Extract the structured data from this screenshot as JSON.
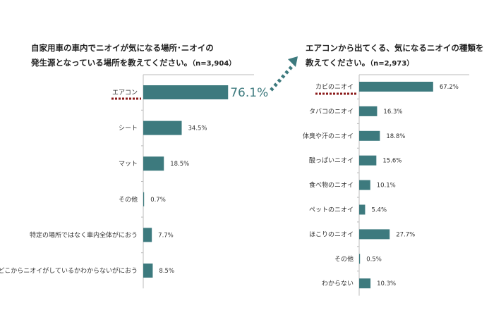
{
  "colors": {
    "bar": "#3d7a7e",
    "highlight_label": "#3d7a7e",
    "marker": "#8b1a1a"
  },
  "chart_data": [
    {
      "type": "bar",
      "orientation": "horizontal",
      "title": "自家用車の車内でニオイが気になる場所･ニオイの",
      "title_line2": "発生源となっている場所を教えてください。",
      "sample": "（n=3,904）",
      "categories": [
        "エアコン",
        "シート",
        "マット",
        "その他",
        "特定の場所ではなく車内全体がにおう",
        "どこからニオイがしているかわからないがにおう"
      ],
      "values": [
        76.1,
        34.5,
        18.5,
        0.7,
        7.7,
        8.5
      ],
      "value_labels": [
        "76.1%",
        "34.5%",
        "18.5%",
        "0.7%",
        "7.7%",
        "8.5%"
      ],
      "highlight_index": 0,
      "xlim": [
        0,
        100
      ]
    },
    {
      "type": "bar",
      "orientation": "horizontal",
      "title": "エアコンから出てくる、気になるニオイの種類を",
      "title_line2": "教えてください。",
      "sample": "（n=2,973）",
      "categories": [
        "カビのニオイ",
        "タバコのニオイ",
        "体臭や汗のニオイ",
        "酸っぱいニオイ",
        "食べ物のニオイ",
        "ペットのニオイ",
        "ほこりのニオイ",
        "その他",
        "わからない"
      ],
      "values": [
        67.2,
        16.3,
        18.8,
        15.6,
        10.1,
        5.4,
        27.7,
        0.5,
        10.3
      ],
      "value_labels": [
        "67.2%",
        "16.3%",
        "18.8%",
        "15.6%",
        "10.1%",
        "5.4%",
        "27.7%",
        "0.5%",
        "10.3%"
      ],
      "highlight_index": 0,
      "xlim": [
        0,
        100
      ]
    }
  ]
}
